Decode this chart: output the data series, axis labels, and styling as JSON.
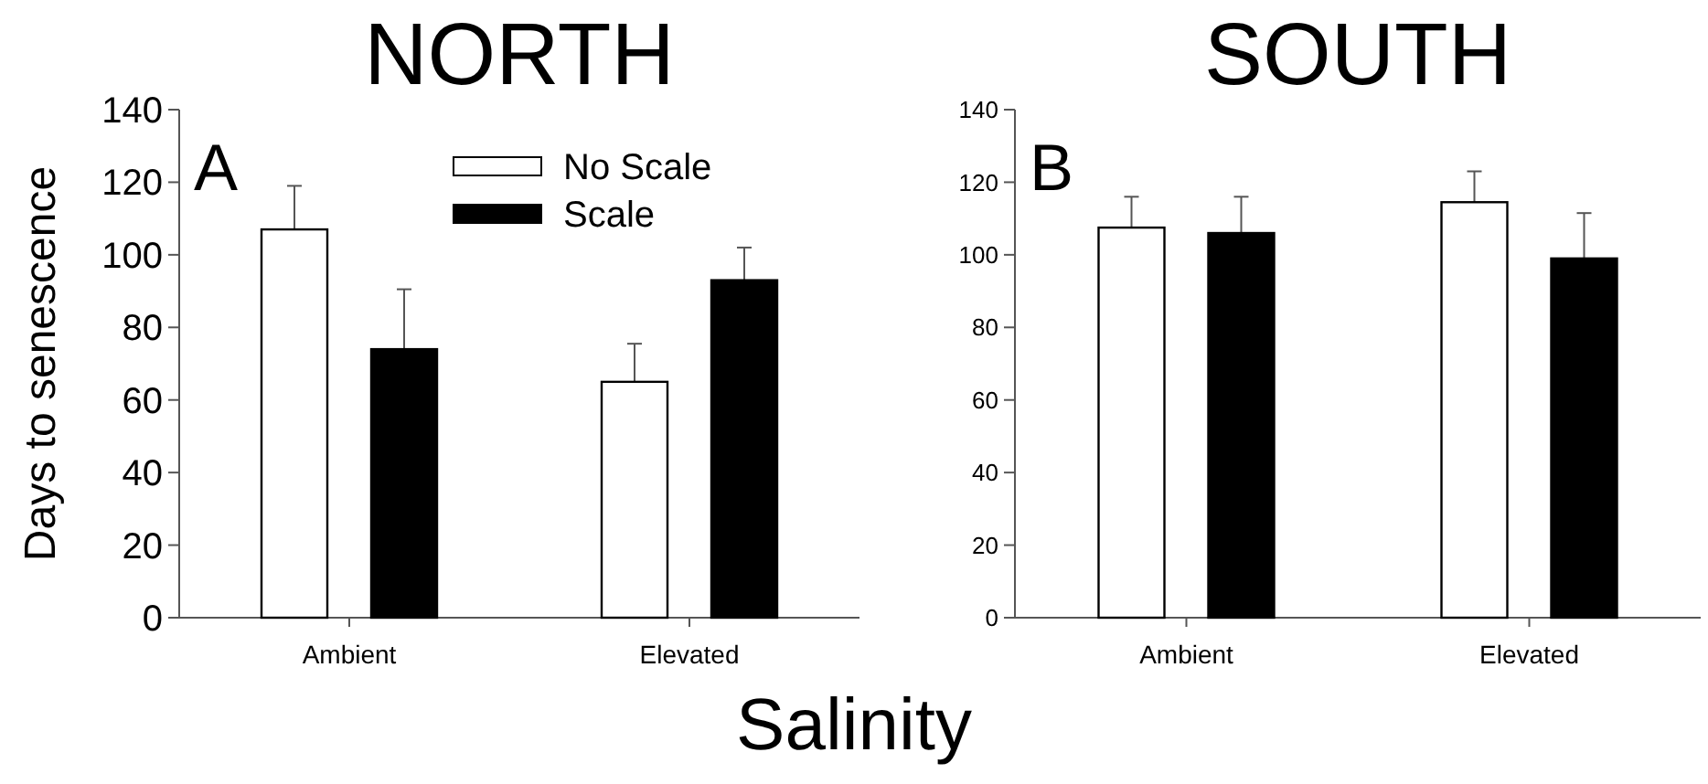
{
  "chart_data": [
    {
      "type": "bar",
      "title": "NORTH",
      "ylabel": "Days to senescence",
      "xlabel": "Salinity",
      "annotations": [
        "A"
      ],
      "categories": [
        "Ambient",
        "Elevated"
      ],
      "ylim": [
        0,
        140
      ],
      "yticks": [
        0,
        20,
        40,
        60,
        80,
        100,
        120,
        140
      ],
      "legend": "top",
      "series": [
        {
          "name": "No Scale",
          "color": "#ffffff",
          "values": [
            107,
            65
          ],
          "errors": [
            [
              107,
              119
            ],
            [
              65,
              75.5
            ]
          ]
        },
        {
          "name": "Scale",
          "color": "#000000",
          "values": [
            74,
            93
          ],
          "errors": [
            [
              74,
              90.5
            ],
            [
              93,
              102
            ]
          ]
        }
      ]
    },
    {
      "type": "bar",
      "title": "SOUTH",
      "annotations": [
        "B"
      ],
      "categories": [
        "Ambient",
        "Elevated"
      ],
      "ylim": [
        0,
        140
      ],
      "yticks": [
        0,
        20,
        40,
        60,
        80,
        100,
        120,
        140
      ],
      "series": [
        {
          "color": "#ffffff",
          "values": [
            107.5,
            114.5
          ],
          "errors": [
            [
              107.5,
              116
            ],
            [
              114.5,
              123
            ]
          ]
        },
        {
          "color": "#000000",
          "values": [
            106,
            99
          ],
          "errors": [
            [
              106,
              116
            ],
            [
              99,
              111.5
            ]
          ]
        }
      ]
    }
  ]
}
